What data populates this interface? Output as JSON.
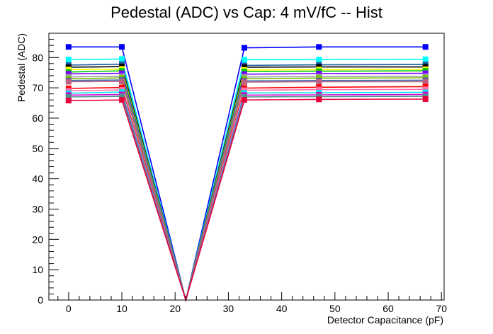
{
  "chart_data": {
    "type": "line",
    "title": "Pedestal (ADC) vs Cap: 4 mV/fC -- Hist",
    "xlabel": "Detector Capacitance (pF)",
    "ylabel": "Pedestal (ADC)",
    "xlim": [
      -3.7,
      70.5
    ],
    "ylim": [
      0,
      88
    ],
    "x_major_ticks": [
      0,
      10,
      20,
      30,
      40,
      50,
      60,
      70
    ],
    "x_minor_step": 2,
    "y_major_ticks": [
      0,
      10,
      20,
      30,
      40,
      50,
      60,
      70,
      80
    ],
    "y_minor_step": 2,
    "grid": false,
    "x": [
      0,
      10,
      22,
      33,
      47,
      67
    ],
    "marker": "square",
    "series": [
      {
        "color": "#0000ff",
        "values": [
          83.5,
          83.5,
          0,
          83.2,
          83.5,
          83.5
        ]
      },
      {
        "color": "#00ffff",
        "values": [
          79.3,
          79.5,
          0,
          79.3,
          79.3,
          79.4
        ]
      },
      {
        "color": "#1b5e9e",
        "values": [
          77.5,
          77.8,
          0,
          77.4,
          77.6,
          77.7
        ]
      },
      {
        "color": "#000000",
        "values": [
          76.8,
          77.0,
          0,
          76.8,
          76.9,
          76.9
        ]
      },
      {
        "color": "#ffff00",
        "values": [
          76.0,
          76.2,
          0,
          75.9,
          76.0,
          76.1
        ]
      },
      {
        "color": "#00cc00",
        "values": [
          75.2,
          75.6,
          0,
          75.4,
          75.5,
          75.6
        ]
      },
      {
        "color": "#7a00ff",
        "values": [
          74.6,
          74.8,
          0,
          74.5,
          74.7,
          74.8
        ]
      },
      {
        "color": "#9aa0a6",
        "values": [
          73.6,
          73.8,
          0,
          73.6,
          73.7,
          73.8
        ]
      },
      {
        "color": "#7fbf00",
        "values": [
          73.0,
          73.3,
          0,
          73.0,
          73.2,
          73.3
        ]
      },
      {
        "color": "#3a6fb0",
        "values": [
          72.4,
          72.6,
          0,
          72.3,
          72.4,
          72.5
        ]
      },
      {
        "color": "#c06080",
        "values": [
          72.0,
          72.1,
          0,
          71.9,
          72.0,
          72.0
        ]
      },
      {
        "color": "#ff0000",
        "values": [
          69.8,
          70.1,
          0,
          69.9,
          70.2,
          70.4
        ]
      },
      {
        "color": "#ff6fb0",
        "values": [
          69.0,
          69.3,
          0,
          69.2,
          69.4,
          69.5
        ]
      },
      {
        "color": "#00e5e5",
        "values": [
          68.2,
          68.6,
          0,
          68.3,
          68.4,
          68.5
        ]
      },
      {
        "color": "#d400d4",
        "values": [
          67.6,
          67.8,
          0,
          67.6,
          67.7,
          67.8
        ]
      },
      {
        "color": "#4f8f8f",
        "values": [
          67.0,
          67.2,
          0,
          67.0,
          67.1,
          67.2
        ]
      },
      {
        "color": "#e8003a",
        "values": [
          65.8,
          66.0,
          0,
          66.0,
          66.2,
          66.3
        ]
      }
    ]
  }
}
